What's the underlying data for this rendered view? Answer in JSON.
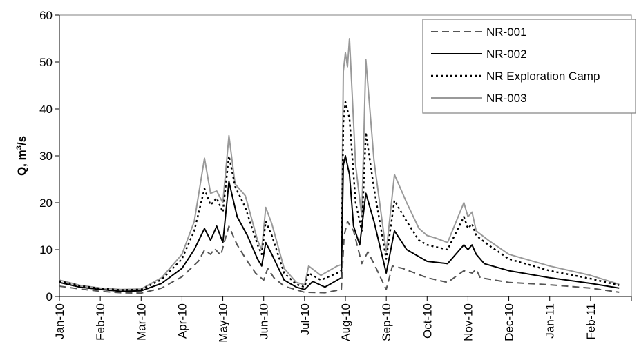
{
  "chart_data": {
    "type": "line",
    "title": "",
    "xlabel": "",
    "ylabel": {
      "prefix": "Q, m",
      "sup": "3",
      "suffix": "/s"
    },
    "ylim": [
      0,
      60
    ],
    "yticks": [
      "0",
      "10",
      "20",
      "30",
      "40",
      "50",
      "60"
    ],
    "x_categories": [
      "Jan-10",
      "Feb-10",
      "Mar-10",
      "Apr-10",
      "May-10",
      "Jun-10",
      "Jul-10",
      "Aug-10",
      "Sep-10",
      "Oct-10",
      "Nov-10",
      "Dec-10",
      "Jan-11",
      "Feb-11"
    ],
    "x_range": [
      "Jan-10",
      "end of Feb-11"
    ],
    "grid": false,
    "legend_position": "top-right",
    "x_unit": "months since Jan-10",
    "series": [
      {
        "name": "NR-001",
        "color": "#555555",
        "dash": "dashed",
        "points": [
          [
            0,
            2.2
          ],
          [
            0.5,
            1.6
          ],
          [
            1,
            1.1
          ],
          [
            1.5,
            0.8
          ],
          [
            2,
            0.7
          ],
          [
            2.5,
            1.8
          ],
          [
            3,
            4.2
          ],
          [
            3.4,
            7.5
          ],
          [
            3.55,
            9.9
          ],
          [
            3.7,
            9.0
          ],
          [
            3.8,
            10.2
          ],
          [
            3.95,
            8.8
          ],
          [
            4.05,
            12.0
          ],
          [
            4.15,
            15.0
          ],
          [
            4.35,
            11.0
          ],
          [
            4.6,
            7.5
          ],
          [
            4.8,
            5.0
          ],
          [
            5,
            3.5
          ],
          [
            5.1,
            6.0
          ],
          [
            5.25,
            4.0
          ],
          [
            5.5,
            2.2
          ],
          [
            6,
            0.9
          ],
          [
            6.5,
            0.8
          ],
          [
            6.9,
            1.5
          ],
          [
            6.97,
            13.0
          ],
          [
            7.05,
            16.0
          ],
          [
            7.2,
            14.0
          ],
          [
            7.4,
            7.0
          ],
          [
            7.55,
            9.5
          ],
          [
            7.7,
            7.0
          ],
          [
            8,
            1.5
          ],
          [
            8.15,
            6.5
          ],
          [
            8.4,
            6.0
          ],
          [
            8.7,
            5.0
          ],
          [
            9,
            4.0
          ],
          [
            9.5,
            3.0
          ],
          [
            9.9,
            5.5
          ],
          [
            10.1,
            5.0
          ],
          [
            10.2,
            5.8
          ],
          [
            10.3,
            4.0
          ],
          [
            11,
            3.0
          ],
          [
            12,
            2.5
          ],
          [
            13,
            1.8
          ],
          [
            13.7,
            0.9
          ]
        ]
      },
      {
        "name": "NR-002",
        "color": "#000000",
        "dash": "solid",
        "points": [
          [
            0,
            3.0
          ],
          [
            0.5,
            2.0
          ],
          [
            1,
            1.5
          ],
          [
            1.5,
            1.1
          ],
          [
            2,
            1.2
          ],
          [
            2.5,
            2.8
          ],
          [
            3,
            6.0
          ],
          [
            3.3,
            10.0
          ],
          [
            3.55,
            14.5
          ],
          [
            3.7,
            12.0
          ],
          [
            3.85,
            15.0
          ],
          [
            4.0,
            11.5
          ],
          [
            4.15,
            24.5
          ],
          [
            4.35,
            17.0
          ],
          [
            4.6,
            13.0
          ],
          [
            4.85,
            8.0
          ],
          [
            4.95,
            6.5
          ],
          [
            5.05,
            11.5
          ],
          [
            5.2,
            9.0
          ],
          [
            5.5,
            3.5
          ],
          [
            5.8,
            2.0
          ],
          [
            6,
            1.5
          ],
          [
            6.2,
            3.2
          ],
          [
            6.5,
            2.0
          ],
          [
            6.8,
            3.5
          ],
          [
            6.9,
            4.0
          ],
          [
            6.95,
            28.0
          ],
          [
            7.0,
            30.0
          ],
          [
            7.1,
            26.0
          ],
          [
            7.2,
            15.0
          ],
          [
            7.35,
            11.0
          ],
          [
            7.5,
            22.0
          ],
          [
            7.7,
            16.0
          ],
          [
            8,
            5.0
          ],
          [
            8.2,
            14.0
          ],
          [
            8.5,
            10.0
          ],
          [
            8.8,
            8.5
          ],
          [
            9,
            7.5
          ],
          [
            9.5,
            7.0
          ],
          [
            9.9,
            11.0
          ],
          [
            10.0,
            10.0
          ],
          [
            10.1,
            11.0
          ],
          [
            10.2,
            9.0
          ],
          [
            10.4,
            7.0
          ],
          [
            11,
            5.5
          ],
          [
            12,
            4.0
          ],
          [
            13,
            2.8
          ],
          [
            13.7,
            1.8
          ]
        ]
      },
      {
        "name": "NR Exploration Camp",
        "color": "#000000",
        "dash": "dotted",
        "points": [
          [
            0,
            3.3
          ],
          [
            0.5,
            2.3
          ],
          [
            1,
            1.7
          ],
          [
            1.5,
            1.4
          ],
          [
            2,
            1.5
          ],
          [
            2.5,
            3.6
          ],
          [
            3,
            8.0
          ],
          [
            3.3,
            14.0
          ],
          [
            3.55,
            23.0
          ],
          [
            3.7,
            19.5
          ],
          [
            3.85,
            21.0
          ],
          [
            4.0,
            18.0
          ],
          [
            4.15,
            30.0
          ],
          [
            4.3,
            23.5
          ],
          [
            4.55,
            19.0
          ],
          [
            4.85,
            11.0
          ],
          [
            4.95,
            9.0
          ],
          [
            5.05,
            16.0
          ],
          [
            5.2,
            13.0
          ],
          [
            5.5,
            5.0
          ],
          [
            5.8,
            2.6
          ],
          [
            6,
            2.0
          ],
          [
            6.1,
            5.0
          ],
          [
            6.4,
            3.5
          ],
          [
            6.8,
            5.0
          ],
          [
            6.9,
            5.5
          ],
          [
            6.95,
            37.0
          ],
          [
            7.0,
            41.5
          ],
          [
            7.1,
            38.0
          ],
          [
            7.25,
            20.0
          ],
          [
            7.4,
            14.0
          ],
          [
            7.5,
            35.0
          ],
          [
            7.7,
            23.0
          ],
          [
            8,
            8.0
          ],
          [
            8.2,
            20.5
          ],
          [
            8.5,
            16.0
          ],
          [
            8.8,
            12.0
          ],
          [
            9,
            11.0
          ],
          [
            9.5,
            10.0
          ],
          [
            9.9,
            17.0
          ],
          [
            10.0,
            14.5
          ],
          [
            10.1,
            15.5
          ],
          [
            10.2,
            13.0
          ],
          [
            10.5,
            11.0
          ],
          [
            11,
            8.0
          ],
          [
            12,
            5.5
          ],
          [
            13,
            3.8
          ],
          [
            13.7,
            2.4
          ]
        ]
      },
      {
        "name": "NR-003",
        "color": "#999999",
        "dash": "solid",
        "points": [
          [
            0,
            3.5
          ],
          [
            0.5,
            2.4
          ],
          [
            1,
            1.8
          ],
          [
            1.5,
            1.5
          ],
          [
            2,
            1.6
          ],
          [
            2.5,
            4.0
          ],
          [
            3,
            9.0
          ],
          [
            3.3,
            16.0
          ],
          [
            3.55,
            29.5
          ],
          [
            3.7,
            22.0
          ],
          [
            3.85,
            22.5
          ],
          [
            4.0,
            20.0
          ],
          [
            4.15,
            34.3
          ],
          [
            4.3,
            24.0
          ],
          [
            4.55,
            21.5
          ],
          [
            4.85,
            12.0
          ],
          [
            4.95,
            10.0
          ],
          [
            5.05,
            19.0
          ],
          [
            5.2,
            15.5
          ],
          [
            5.5,
            6.0
          ],
          [
            5.8,
            3.0
          ],
          [
            6,
            2.5
          ],
          [
            6.1,
            6.5
          ],
          [
            6.4,
            4.5
          ],
          [
            6.8,
            6.5
          ],
          [
            6.9,
            6.8
          ],
          [
            6.95,
            48.0
          ],
          [
            7.0,
            52.0
          ],
          [
            7.05,
            49.0
          ],
          [
            7.1,
            55.0
          ],
          [
            7.25,
            28.0
          ],
          [
            7.4,
            17.0
          ],
          [
            7.5,
            50.5
          ],
          [
            7.7,
            29.0
          ],
          [
            8,
            9.5
          ],
          [
            8.2,
            26.0
          ],
          [
            8.5,
            20.0
          ],
          [
            8.8,
            14.5
          ],
          [
            9,
            13.0
          ],
          [
            9.2,
            12.5
          ],
          [
            9.5,
            11.5
          ],
          [
            9.9,
            20.0
          ],
          [
            10.0,
            17.0
          ],
          [
            10.1,
            18.0
          ],
          [
            10.2,
            14.0
          ],
          [
            10.5,
            12.0
          ],
          [
            11,
            9.0
          ],
          [
            12,
            6.5
          ],
          [
            13,
            4.5
          ],
          [
            13.7,
            2.6
          ]
        ]
      }
    ]
  }
}
